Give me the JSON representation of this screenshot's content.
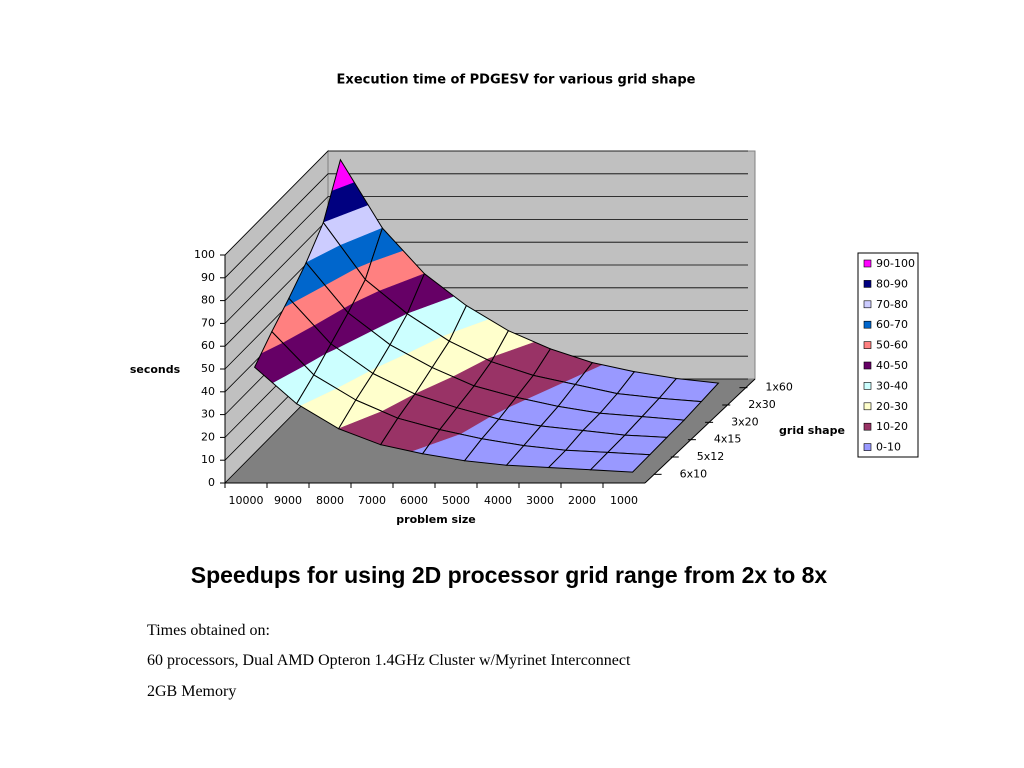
{
  "chart_data": {
    "type": "surface",
    "title": "Execution time of PDGESV for various grid shape",
    "y_label": "seconds",
    "x_label": "problem size",
    "z_label": "grid shape",
    "categories": [
      "10000",
      "9000",
      "8000",
      "7000",
      "6000",
      "5000",
      "4000",
      "3000",
      "2000",
      "1000"
    ],
    "series": [
      {
        "name": "1x60",
        "values": [
          100,
          70,
          50,
          36,
          25,
          17,
          11,
          7,
          4,
          2
        ]
      },
      {
        "name": "2x30",
        "values": [
          80,
          55,
          40,
          28,
          19,
          13,
          9,
          5,
          3,
          1.5
        ]
      },
      {
        "name": "3x20",
        "values": [
          70,
          48,
          34,
          24,
          16,
          11,
          7,
          4,
          2.5,
          1
        ]
      },
      {
        "name": "4x15",
        "values": [
          62,
          42,
          29,
          20,
          14,
          9,
          6,
          4,
          2,
          1
        ]
      },
      {
        "name": "5x12",
        "values": [
          55,
          36,
          25,
          17,
          12,
          8,
          5,
          3,
          2,
          1
        ]
      },
      {
        "name": "6x10",
        "values": [
          47,
          31,
          20,
          13,
          9,
          6,
          4,
          3,
          2,
          1
        ]
      }
    ],
    "ylim": [
      0,
      100
    ],
    "yticks": [
      0,
      10,
      20,
      30,
      40,
      50,
      60,
      70,
      80,
      90,
      100
    ],
    "bands": [
      {
        "name": "90-100",
        "range": [
          90,
          100
        ],
        "color": "#ff00ff"
      },
      {
        "name": "80-90",
        "range": [
          80,
          90
        ],
        "color": "#000080"
      },
      {
        "name": "70-80",
        "range": [
          70,
          80
        ],
        "color": "#ccccff"
      },
      {
        "name": "60-70",
        "range": [
          60,
          70
        ],
        "color": "#0066cc"
      },
      {
        "name": "50-60",
        "range": [
          50,
          60
        ],
        "color": "#ff8080"
      },
      {
        "name": "40-50",
        "range": [
          40,
          50
        ],
        "color": "#660066"
      },
      {
        "name": "30-40",
        "range": [
          30,
          40
        ],
        "color": "#ccffff"
      },
      {
        "name": "20-30",
        "range": [
          20,
          30
        ],
        "color": "#ffffcc"
      },
      {
        "name": "10-20",
        "range": [
          10,
          20
        ],
        "color": "#993366"
      },
      {
        "name": "0-10",
        "range": [
          0,
          10
        ],
        "color": "#9999ff"
      }
    ],
    "legend": "right"
  },
  "heading": "Speedups for using 2D processor grid range from 2x to 8x",
  "notes": [
    "Times obtained on:",
    "60 processors, Dual AMD Opteron 1.4GHz Cluster w/Myrinet Interconnect",
    "2GB Memory"
  ]
}
